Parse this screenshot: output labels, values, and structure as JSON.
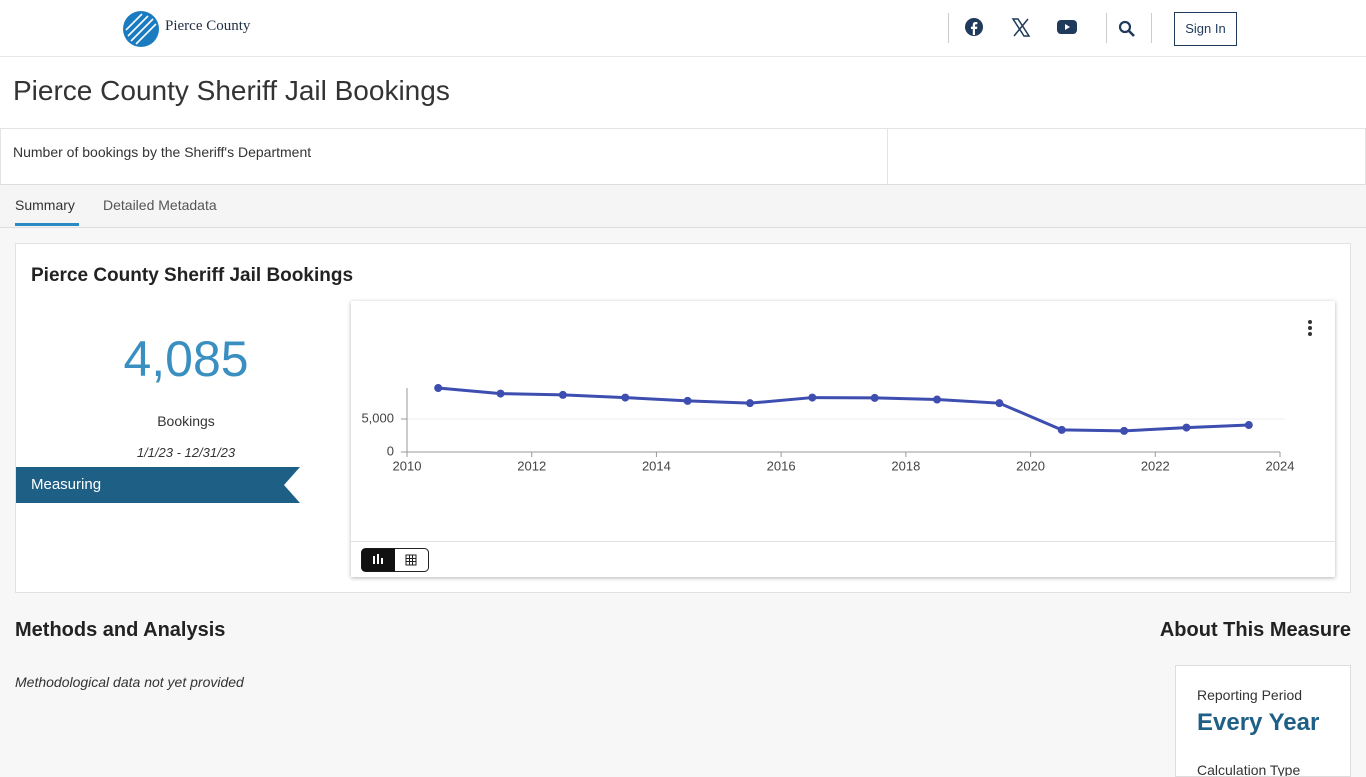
{
  "header": {
    "logo_text": "Pierce County",
    "sign_in": "Sign In"
  },
  "page": {
    "title": "Pierce County Sheriff Jail Bookings",
    "description": "Number of bookings by the Sheriff's Department"
  },
  "tabs": [
    "Summary",
    "Detailed Metadata"
  ],
  "card": {
    "title": "Pierce County Sheriff Jail Bookings",
    "kpi_value": "4,085",
    "kpi_label": "Bookings",
    "period": "1/1/23 - 12/31/23",
    "ribbon": "Measuring"
  },
  "chart_data": {
    "type": "line",
    "x": [
      2010.5,
      2011.5,
      2012.5,
      2013.5,
      2014.5,
      2015.5,
      2016.5,
      2017.5,
      2018.5,
      2019.5,
      2020.5,
      2021.5,
      2022.5,
      2023.5
    ],
    "values": [
      9700,
      8850,
      8650,
      8250,
      7750,
      7400,
      8250,
      8200,
      7950,
      7400,
      3350,
      3200,
      3700,
      4085
    ],
    "color": "#3d4db0",
    "xlim": [
      2010,
      2024
    ],
    "xticks": [
      2010,
      2012,
      2014,
      2016,
      2018,
      2020,
      2022,
      2024
    ],
    "ylim": [
      0,
      9700
    ],
    "yticks": [
      0,
      {
        "value": 5000,
        "label": "5,000"
      }
    ],
    "grid": true
  },
  "methods": {
    "title": "Methods and Analysis",
    "text": "Methodological data not yet provided"
  },
  "about": {
    "title": "About This Measure",
    "reporting_label": "Reporting Period",
    "reporting_value": "Every Year",
    "calculation_label": "Calculation Type"
  }
}
